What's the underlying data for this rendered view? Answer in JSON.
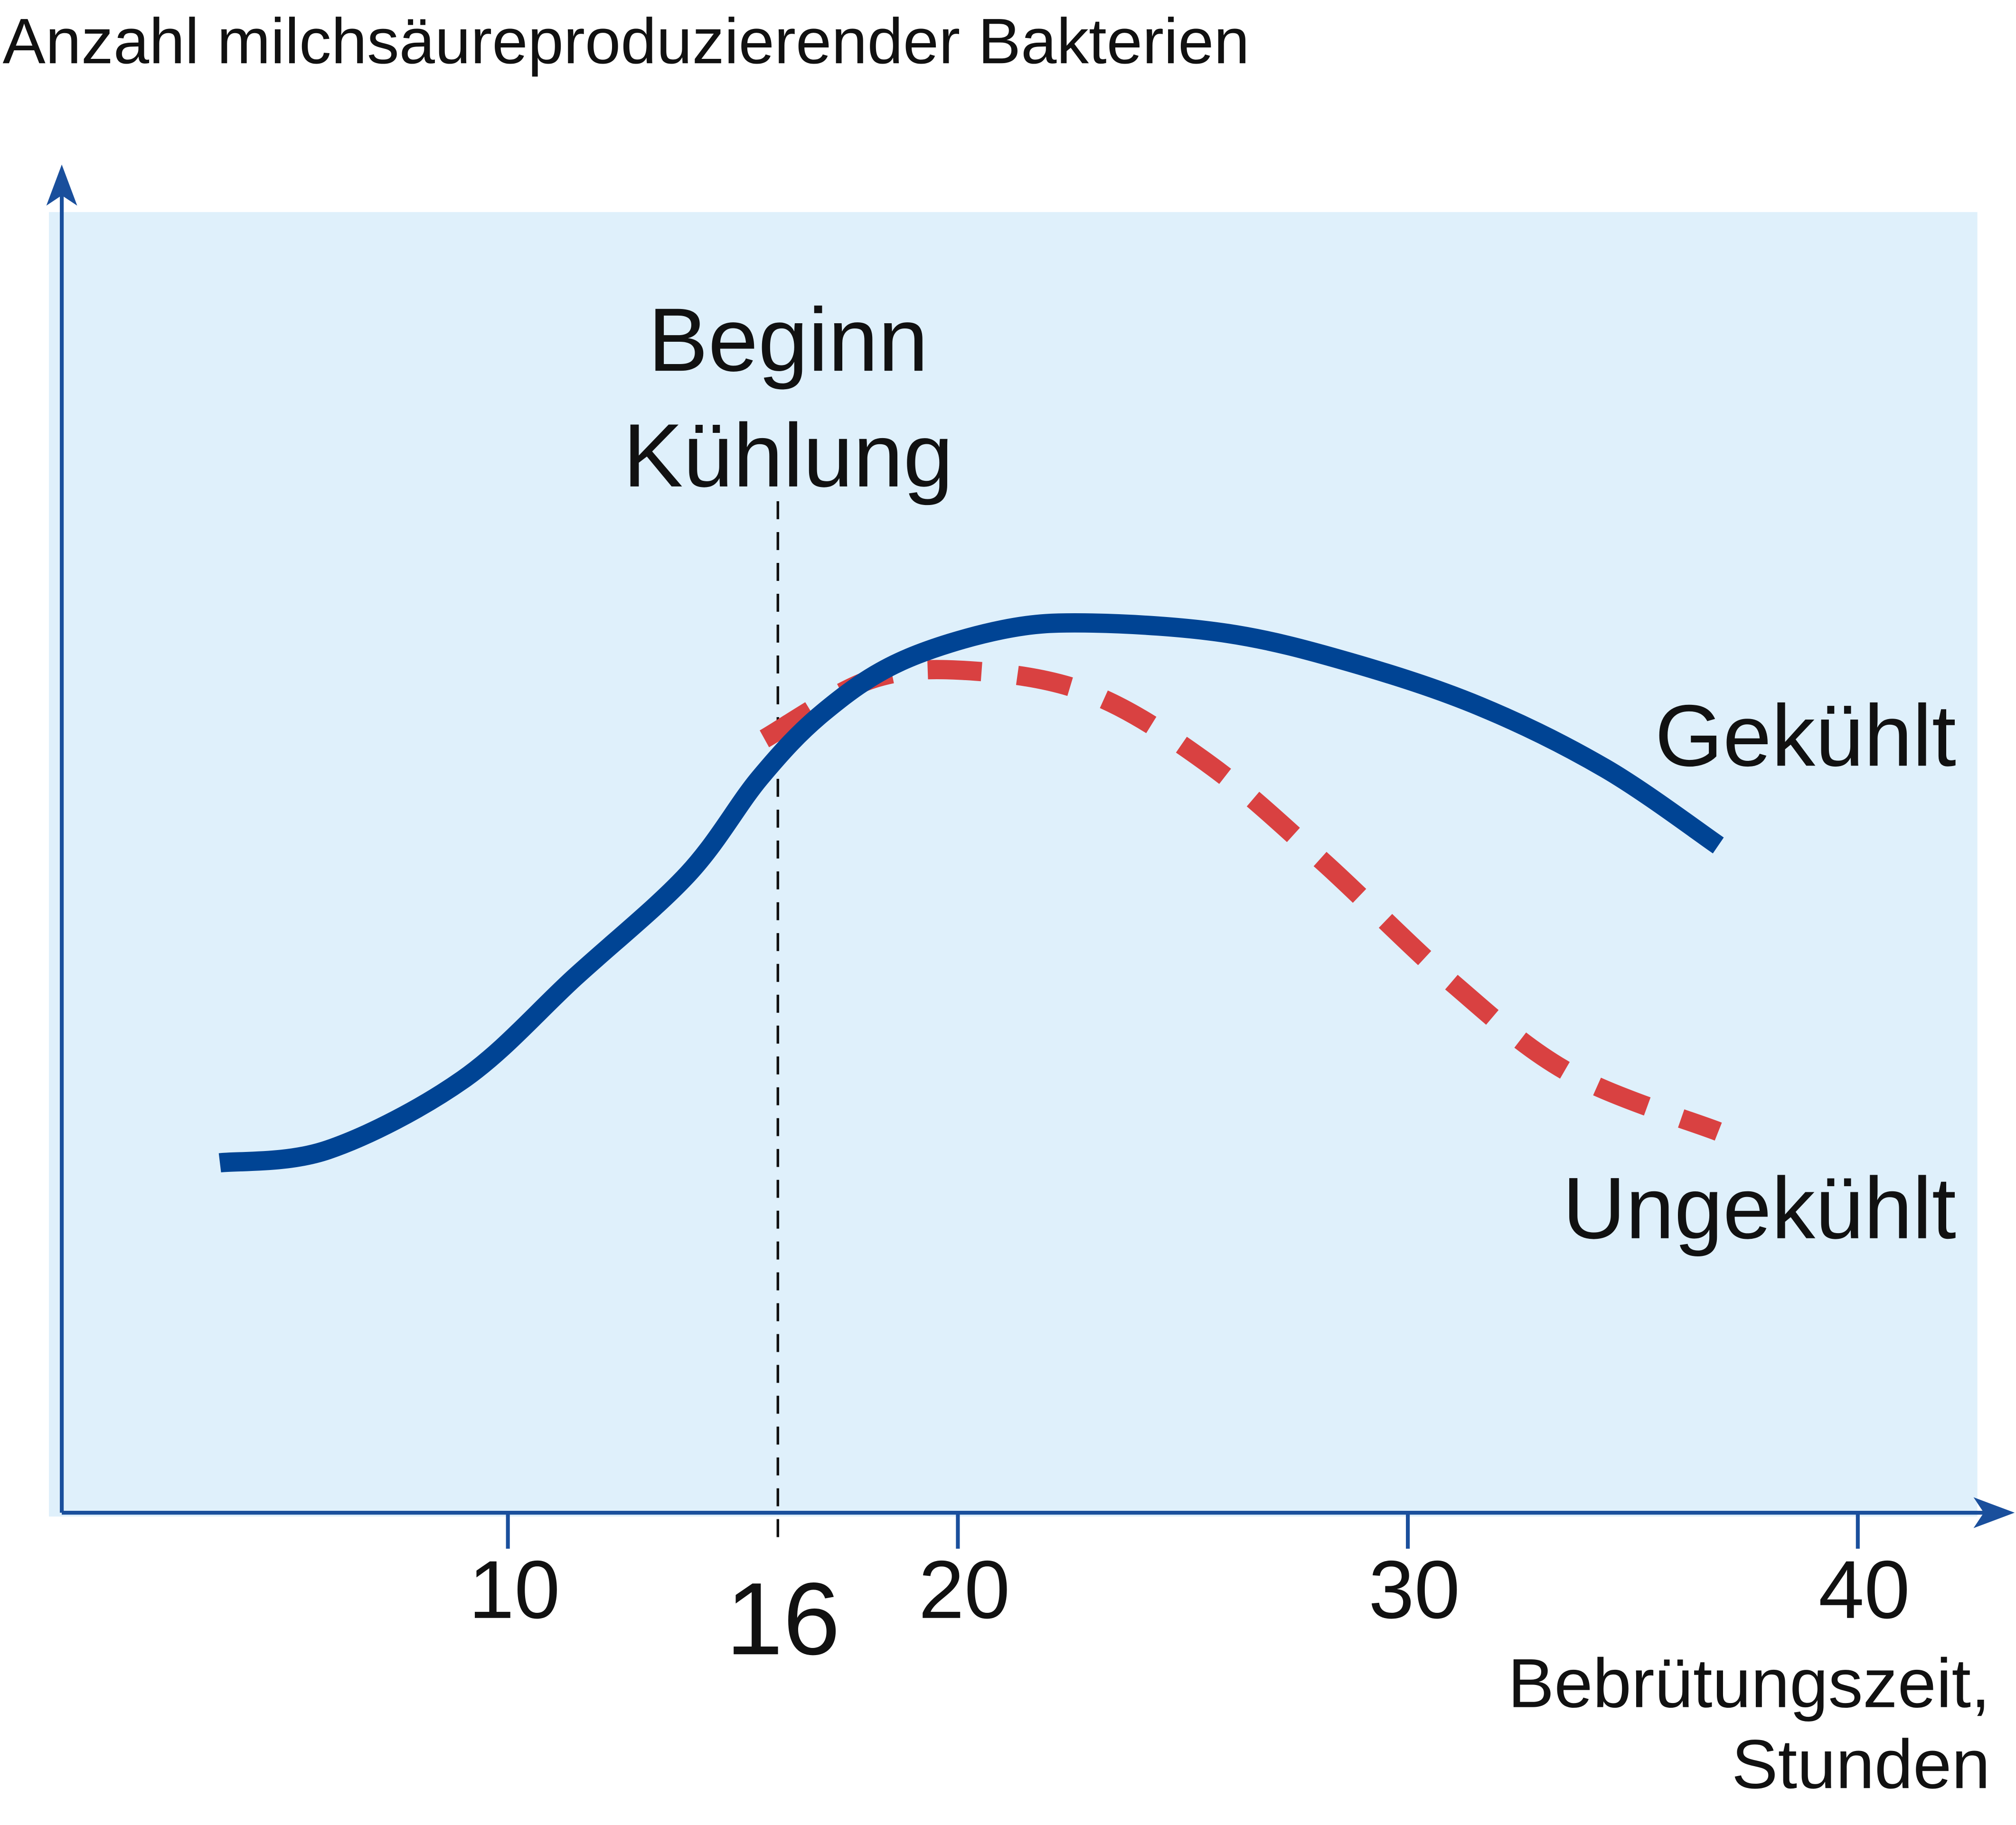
{
  "chart_data": {
    "type": "line",
    "title": "Anzahl milchsäureproduzierender Bakterien",
    "x_label": [
      "Bebrütungszeit,",
      "Stunden"
    ],
    "xlim": [
      0,
      43
    ],
    "ylim": [
      0,
      100
    ],
    "xticks": [
      10,
      20,
      30,
      40
    ],
    "cooling_x": 16,
    "cooling_label": [
      "Beginn",
      "Kühlung"
    ],
    "series": [
      {
        "name": "Gekühlt",
        "color": "#004494",
        "dashed": false,
        "x": [
          3.6,
          6,
          9,
          11.5,
          14,
          15.6,
          17,
          18.7,
          21,
          23,
          26,
          28.7,
          31.6,
          34.4,
          36.9
        ],
        "values": [
          26.9,
          27.9,
          33.3,
          41.2,
          49.1,
          56.5,
          61.5,
          65.4,
          67.9,
          68.4,
          67.6,
          65.4,
          62,
          57.2,
          51.3
        ]
      },
      {
        "name": "Ungekühlt",
        "color": "#d94141",
        "dashed": true,
        "x": [
          15.7,
          18.1,
          20.4,
          23,
          25.6,
          28.1,
          31,
          33.6,
          36.9
        ],
        "values": [
          59.5,
          64.1,
          64.7,
          62.9,
          57.5,
          50.1,
          40.7,
          33.8,
          29.3
        ]
      }
    ]
  }
}
